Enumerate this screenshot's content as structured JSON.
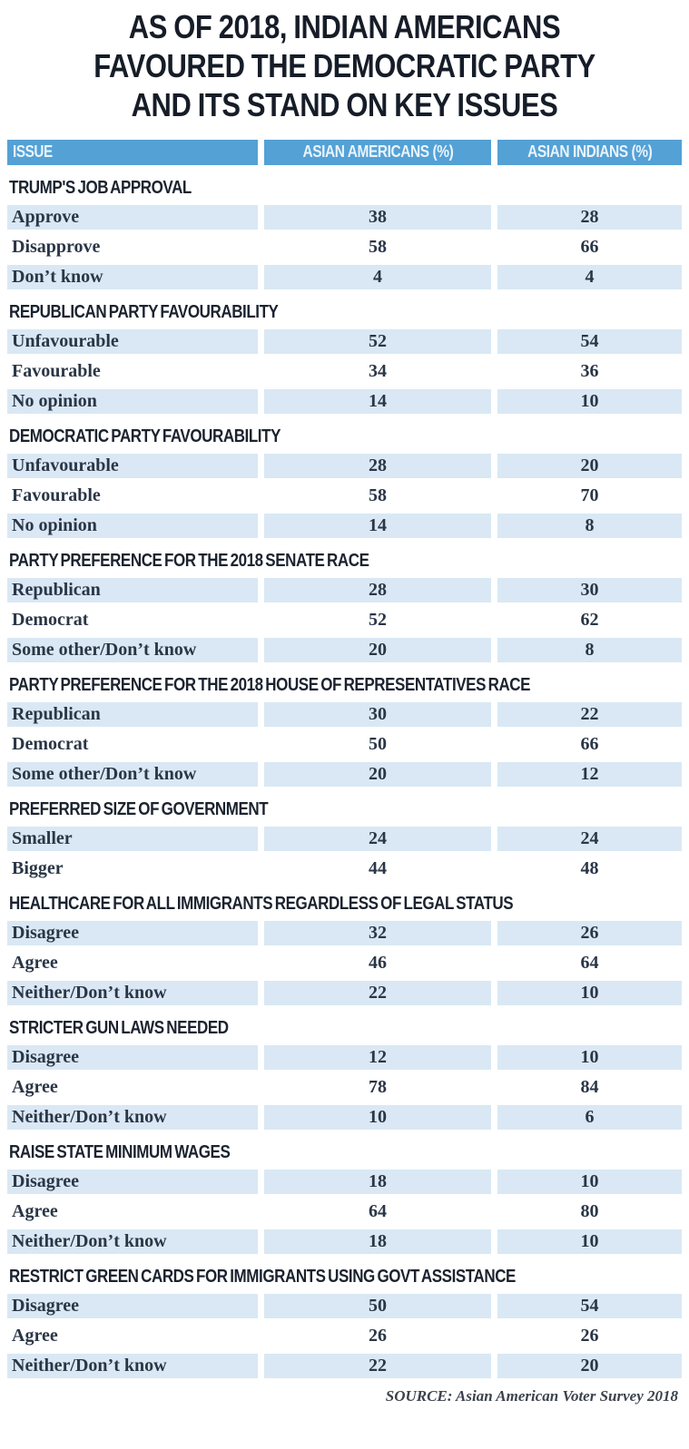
{
  "colors": {
    "header_bg": "#54a1d6",
    "header_text": "#e9f4fc",
    "row_alt_bg": "#d9e8f4",
    "row_text": "#2a3647",
    "title_color": "#161d28",
    "heading_color": "#1b232f",
    "source_color": "#3c424c"
  },
  "chart_data": {
    "type": "table",
    "title": "AS OF 2018, INDIAN AMERICANS FAVOURED THE DEMOCRATIC PARTY AND ITS STAND ON KEY ISSUES",
    "columns": [
      "ISSUE",
      "ASIAN AMERICANS (%)",
      "ASIAN INDIANS (%)"
    ],
    "sections": [
      {
        "heading": "TRUMP'S JOB APPROVAL",
        "rows": [
          [
            "Approve",
            38,
            28
          ],
          [
            "Disapprove",
            58,
            66
          ],
          [
            "Don’t know",
            4,
            4
          ]
        ]
      },
      {
        "heading": "REPUBLICAN PARTY FAVOURABILITY",
        "rows": [
          [
            "Unfavourable",
            52,
            54
          ],
          [
            "Favourable",
            34,
            36
          ],
          [
            "No opinion",
            14,
            10
          ]
        ]
      },
      {
        "heading": "DEMOCRATIC PARTY FAVOURABILITY",
        "rows": [
          [
            "Unfavourable",
            28,
            20
          ],
          [
            "Favourable",
            58,
            70
          ],
          [
            "No opinion",
            14,
            8
          ]
        ]
      },
      {
        "heading": "PARTY PREFERENCE FOR THE 2018 SENATE RACE",
        "rows": [
          [
            "Republican",
            28,
            30
          ],
          [
            "Democrat",
            52,
            62
          ],
          [
            "Some other/Don’t know",
            20,
            8
          ]
        ]
      },
      {
        "heading": "PARTY PREFERENCE FOR THE 2018 HOUSE OF REPRESENTATIVES RACE",
        "rows": [
          [
            "Republican",
            30,
            22
          ],
          [
            "Democrat",
            50,
            66
          ],
          [
            "Some other/Don’t know",
            20,
            12
          ]
        ]
      },
      {
        "heading": "PREFERRED SIZE OF GOVERNMENT",
        "rows": [
          [
            "Smaller",
            24,
            24
          ],
          [
            "Bigger",
            44,
            48
          ]
        ]
      },
      {
        "heading": "HEALTHCARE FOR ALL IMMIGRANTS REGARDLESS OF LEGAL STATUS",
        "rows": [
          [
            "Disagree",
            32,
            26
          ],
          [
            "Agree",
            46,
            64
          ],
          [
            "Neither/Don’t know",
            22,
            10
          ]
        ]
      },
      {
        "heading": "STRICTER GUN LAWS NEEDED",
        "rows": [
          [
            "Disagree",
            12,
            10
          ],
          [
            "Agree",
            78,
            84
          ],
          [
            "Neither/Don’t know",
            10,
            6
          ]
        ]
      },
      {
        "heading": "RAISE STATE MINIMUM WAGES",
        "rows": [
          [
            "Disagree",
            18,
            10
          ],
          [
            "Agree",
            64,
            80
          ],
          [
            "Neither/Don’t know",
            18,
            10
          ]
        ]
      },
      {
        "heading": "RESTRICT GREEN CARDS FOR IMMIGRANTS USING GOVT ASSISTANCE",
        "rows": [
          [
            "Disagree",
            50,
            54
          ],
          [
            "Agree",
            26,
            26
          ],
          [
            "Neither/Don’t know",
            22,
            20
          ]
        ]
      }
    ],
    "source": "SOURCE: Asian American Voter Survey 2018"
  }
}
